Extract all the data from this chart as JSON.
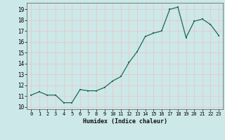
{
  "x": [
    0,
    1,
    2,
    3,
    4,
    5,
    6,
    7,
    8,
    9,
    10,
    11,
    12,
    13,
    14,
    15,
    16,
    17,
    18,
    19,
    20,
    21,
    22,
    23
  ],
  "y": [
    11.1,
    11.4,
    11.1,
    11.1,
    10.4,
    10.4,
    11.6,
    11.5,
    11.5,
    11.8,
    12.4,
    12.8,
    14.1,
    15.1,
    16.5,
    16.8,
    17.0,
    19.0,
    19.2,
    16.4,
    17.9,
    18.1,
    17.6,
    16.6
  ],
  "xlabel": "Humidex (Indice chaleur)",
  "xlim": [
    -0.5,
    23.5
  ],
  "ylim": [
    9.8,
    19.6
  ],
  "yticks": [
    10,
    11,
    12,
    13,
    14,
    15,
    16,
    17,
    18,
    19
  ],
  "xticks": [
    0,
    1,
    2,
    3,
    4,
    5,
    6,
    7,
    8,
    9,
    10,
    11,
    12,
    13,
    14,
    15,
    16,
    17,
    18,
    19,
    20,
    21,
    22,
    23
  ],
  "line_color": "#1a6b5a",
  "marker_color": "#1a6b5a",
  "bg_color": "#cce8e8",
  "grid_color": "#e8c8c8"
}
